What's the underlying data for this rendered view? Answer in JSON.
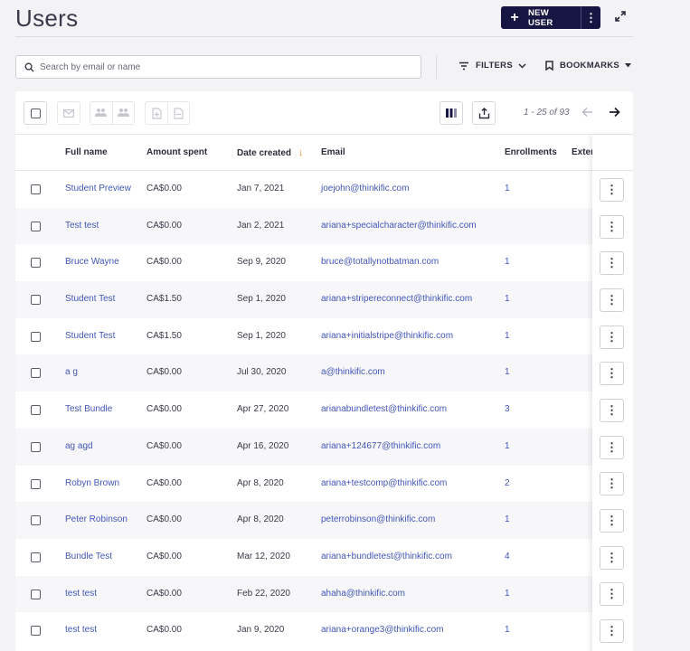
{
  "page": {
    "title": "Users"
  },
  "header": {
    "new_user_label": "NEW USER",
    "new_user_plus": "+",
    "more_glyph": "⋮"
  },
  "search": {
    "placeholder": "Search by email or name",
    "value": ""
  },
  "toolbar": {
    "filters_label": "FILTERS",
    "bookmarks_label": "BOOKMARKS",
    "pagination": "1 - 25 of 93"
  },
  "table": {
    "columns": {
      "full_name": "Full name",
      "amount_spent": "Amount spent",
      "date_created": "Date created",
      "email": "Email",
      "enrollments": "Enrollments",
      "external": "Exter"
    },
    "sort_glyph": "↓",
    "rows": [
      {
        "name": "Student Preview",
        "amount": "CA$0.00",
        "date": "Jan 7, 2021",
        "email": "joejohn@thinkific.com",
        "enrollments": "1"
      },
      {
        "name": "Test test",
        "amount": "CA$0.00",
        "date": "Jan 2, 2021",
        "email": "ariana+specialcharacter@thinkific.com",
        "enrollments": ""
      },
      {
        "name": "Bruce Wayne",
        "amount": "CA$0.00",
        "date": "Sep 9, 2020",
        "email": "bruce@totallynotbatman.com",
        "enrollments": "1"
      },
      {
        "name": "Student Test",
        "amount": "CA$1.50",
        "date": "Sep 1, 2020",
        "email": "ariana+stripereconnect@thinkific.com",
        "enrollments": "1"
      },
      {
        "name": "Student Test",
        "amount": "CA$1.50",
        "date": "Sep 1, 2020",
        "email": "ariana+initialstripe@thinkific.com",
        "enrollments": "1"
      },
      {
        "name": "a g",
        "amount": "CA$0.00",
        "date": "Jul 30, 2020",
        "email": "a@thinkific.com",
        "enrollments": "1"
      },
      {
        "name": "Test Bundle",
        "amount": "CA$0.00",
        "date": "Apr 27, 2020",
        "email": "arianabundletest@thinkific.com",
        "enrollments": "3"
      },
      {
        "name": "ag agd",
        "amount": "CA$0.00",
        "date": "Apr 16, 2020",
        "email": "ariana+124677@thinkific.com",
        "enrollments": "1"
      },
      {
        "name": "Robyn Brown",
        "amount": "CA$0.00",
        "date": "Apr 8, 2020",
        "email": "ariana+testcomp@thinkific.com",
        "enrollments": "2"
      },
      {
        "name": "Peter Robinson",
        "amount": "CA$0.00",
        "date": "Apr 8, 2020",
        "email": "peterrobinson@thinkific.com",
        "enrollments": "1"
      },
      {
        "name": "Bundle Test",
        "amount": "CA$0.00",
        "date": "Mar 12, 2020",
        "email": "ariana+bundletest@thinkific.com",
        "enrollments": "4"
      },
      {
        "name": "test test",
        "amount": "CA$0.00",
        "date": "Feb 22, 2020",
        "email": "ahaha@thinkific.com",
        "enrollments": "1"
      },
      {
        "name": "test test",
        "amount": "CA$0.00",
        "date": "Jan 9, 2020",
        "email": "ariana+orange3@thinkific.com",
        "enrollments": "1"
      }
    ]
  },
  "colors": {
    "primary": "#171542",
    "link": "#4256b7",
    "sort_accent": "#e28c1c"
  },
  "icons": [
    "search-icon",
    "filter-icon",
    "bookmark-icon",
    "chevron-down-icon",
    "expand-icon",
    "mail-icon",
    "group-add-icon",
    "group-remove-icon",
    "doc-add-icon",
    "doc-remove-icon",
    "columns-icon",
    "export-icon",
    "arrow-left-icon",
    "arrow-right-icon",
    "kebab-icon"
  ]
}
